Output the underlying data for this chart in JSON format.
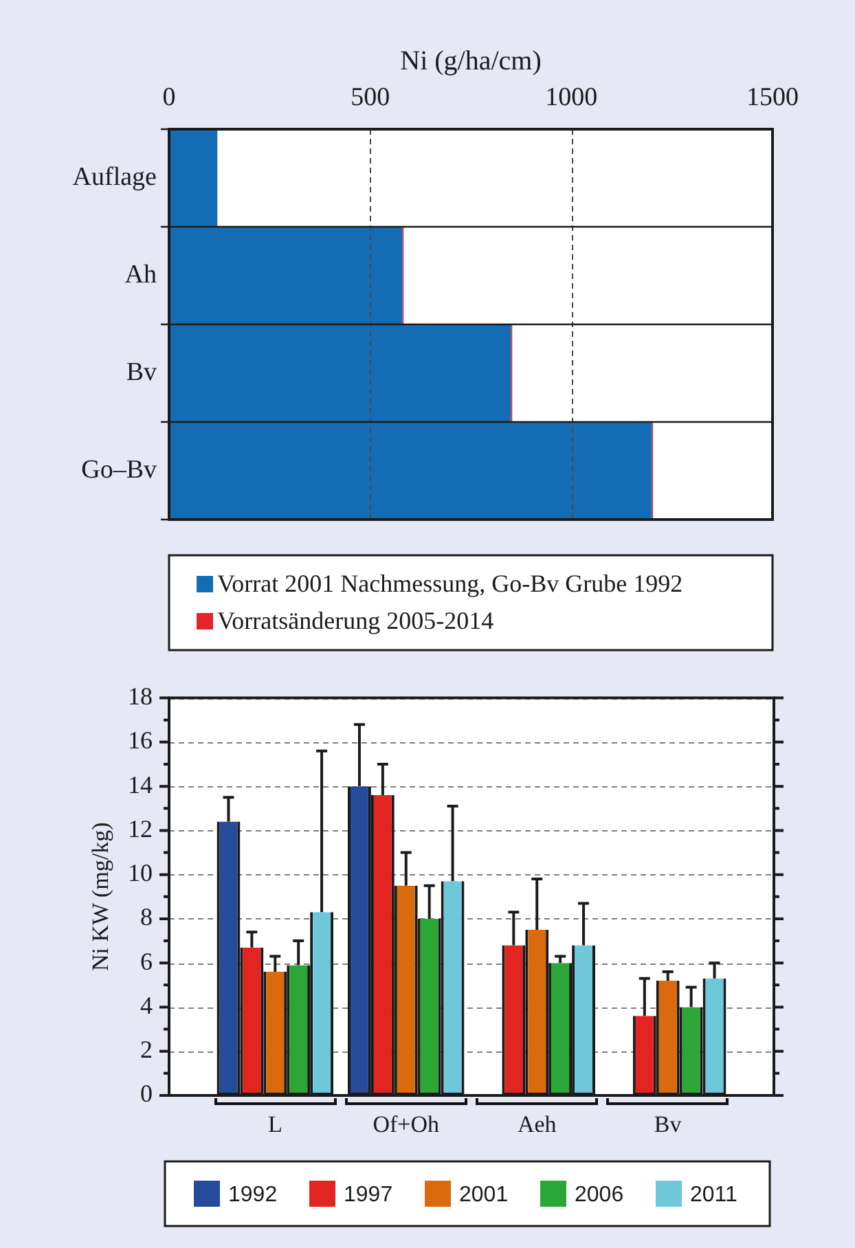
{
  "chart_data": [
    {
      "type": "bar",
      "orientation": "horizontal",
      "stacked": true,
      "xlabel": "Ni (g/ha/cm)",
      "categories": [
        "Auflage",
        "Ah",
        "Bv",
        "Go–Bv"
      ],
      "series": [
        {
          "name": "Vorrat 2001 Nachmessung, Go-Bv Grube 1992",
          "color": "#146cb5",
          "values": [
            120,
            580,
            850,
            1200
          ]
        },
        {
          "name": "Vorratsänderung 2005-2014",
          "color": "#e3242b",
          "values": [
            null,
            3,
            3,
            3
          ]
        }
      ],
      "xlim": [
        0,
        1500
      ],
      "xticks": [
        0,
        500,
        1000,
        1500
      ],
      "grid": "x",
      "legend": "bottom"
    },
    {
      "type": "bar",
      "ylabel": "Ni KW (mg/kg)",
      "categories": [
        "L",
        "Of+Oh",
        "Aeh",
        "Bv"
      ],
      "series": [
        {
          "name": "1992",
          "color": "#264b9b",
          "values": [
            12.4,
            14.0,
            null,
            null
          ],
          "errors": [
            [
              12.4,
              13.5
            ],
            [
              14.0,
              16.8
            ],
            null,
            null
          ]
        },
        {
          "name": "1997",
          "color": "#e32521",
          "values": [
            6.7,
            13.6,
            6.8,
            3.6
          ],
          "errors": [
            [
              6.7,
              7.4
            ],
            [
              13.6,
              15.0
            ],
            [
              6.8,
              8.3
            ],
            [
              3.6,
              5.3
            ]
          ]
        },
        {
          "name": "2001",
          "color": "#d96a0e",
          "values": [
            5.6,
            9.5,
            7.5,
            5.2
          ],
          "errors": [
            [
              5.6,
              6.3
            ],
            [
              9.5,
              11.0
            ],
            [
              7.5,
              9.8
            ],
            [
              5.2,
              5.6
            ]
          ]
        },
        {
          "name": "2006",
          "color": "#2aa736",
          "values": [
            5.9,
            8.0,
            6.0,
            4.0
          ],
          "errors": [
            [
              5.9,
              7.0
            ],
            [
              8.0,
              9.5
            ],
            [
              6.0,
              6.3
            ],
            [
              4.0,
              4.9
            ]
          ]
        },
        {
          "name": "2011",
          "color": "#6fc7da",
          "values": [
            8.3,
            9.7,
            6.8,
            5.3
          ],
          "errors": [
            [
              8.3,
              15.6
            ],
            [
              9.7,
              13.1
            ],
            [
              6.8,
              8.7
            ],
            [
              5.3,
              6.0
            ]
          ]
        }
      ],
      "ylim": [
        0,
        18
      ],
      "yticks": [
        0,
        {
          "value": 1,
          "label": null
        },
        2,
        {
          "value": 3,
          "label": null
        },
        4,
        {
          "value": 5,
          "label": null
        },
        6,
        {
          "value": 7,
          "label": null
        },
        8,
        {
          "value": 9,
          "label": null
        },
        10,
        {
          "value": 11,
          "label": null
        },
        12,
        {
          "value": 13,
          "label": null
        },
        14,
        {
          "value": 15,
          "label": null
        },
        16,
        {
          "value": 17,
          "label": null
        },
        18
      ],
      "grid": "y",
      "legend": "bottom"
    }
  ]
}
